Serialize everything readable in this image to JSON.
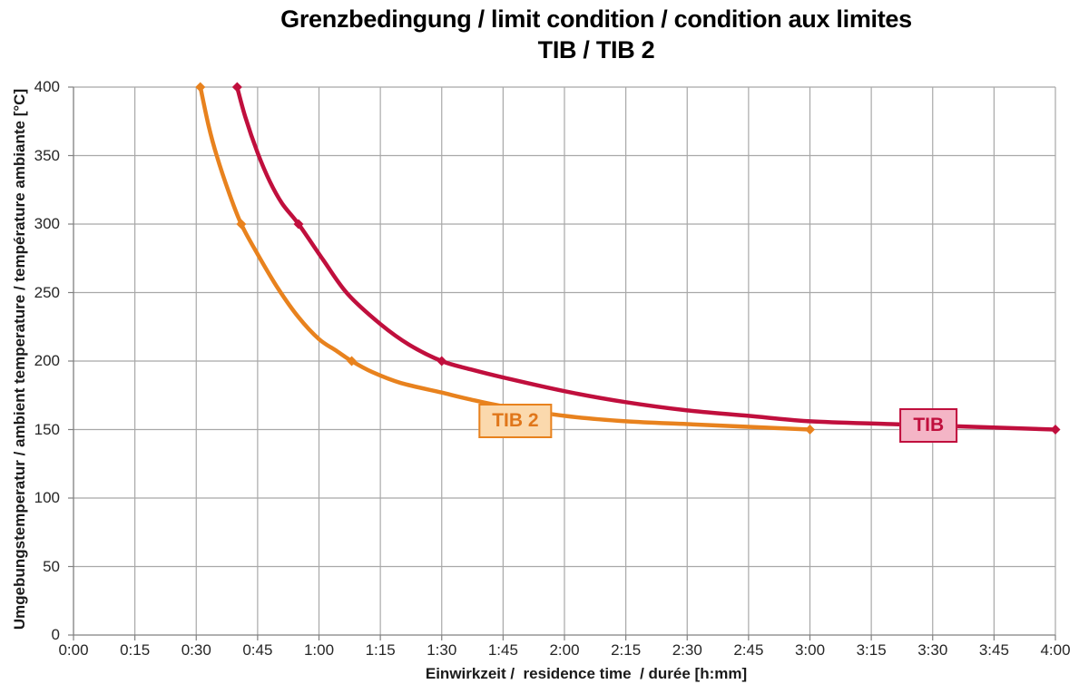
{
  "title": {
    "line1": "Grenzbedingung / limit condition / condition aux limites",
    "line2": "TIB / TIB 2"
  },
  "chart_data": {
    "type": "line",
    "title": "Grenzbedingung / limit condition / condition aux limites",
    "subtitle": "TIB / TIB 2",
    "xlabel": "Einwirkzeit /  residence time  / durée [h:mm]",
    "ylabel": "Umgebungstemperatur / ambient temperature / température ambiante [°C]",
    "x_unit": "h:mm",
    "xlim_minutes": [
      0,
      240
    ],
    "ylim": [
      0,
      400
    ],
    "grid": true,
    "legend_position": "inline-boxes",
    "x_ticks": [
      "0:00",
      "0:15",
      "0:30",
      "0:45",
      "1:00",
      "1:15",
      "1:30",
      "1:45",
      "2:00",
      "2:15",
      "2:30",
      "2:45",
      "3:00",
      "3:15",
      "3:30",
      "3:45",
      "4:00"
    ],
    "x_tick_minutes": [
      0,
      15,
      30,
      45,
      60,
      75,
      90,
      105,
      120,
      135,
      150,
      165,
      180,
      195,
      210,
      225,
      240
    ],
    "y_ticks": [
      0,
      50,
      100,
      150,
      200,
      250,
      300,
      350,
      400
    ],
    "colors": {
      "grid": "#A8A8A8",
      "axis": "#808080",
      "tick_text": "#262626",
      "title_text": "#000000"
    },
    "series": [
      {
        "name": "TIB 2",
        "color": "#E8821E",
        "points": [
          [
            31,
            400
          ],
          [
            33,
            372
          ],
          [
            35,
            350
          ],
          [
            38,
            323
          ],
          [
            41,
            300
          ],
          [
            45,
            278
          ],
          [
            50,
            253
          ],
          [
            55,
            232
          ],
          [
            60,
            216
          ],
          [
            64,
            208
          ],
          [
            68,
            200
          ],
          [
            73,
            192
          ],
          [
            80,
            184
          ],
          [
            90,
            177
          ],
          [
            97,
            172
          ],
          [
            105,
            167
          ],
          [
            120,
            160
          ],
          [
            135,
            156
          ],
          [
            150,
            154
          ],
          [
            165,
            152
          ],
          [
            180,
            150
          ]
        ],
        "markers": [
          [
            31,
            400
          ],
          [
            41,
            300
          ],
          [
            68,
            200
          ],
          [
            180,
            150
          ]
        ]
      },
      {
        "name": "TIB",
        "color": "#C00F3D",
        "points": [
          [
            40,
            400
          ],
          [
            42,
            378
          ],
          [
            45,
            352
          ],
          [
            48,
            331
          ],
          [
            51,
            315
          ],
          [
            55,
            300
          ],
          [
            61,
            274
          ],
          [
            67,
            249
          ],
          [
            75,
            227
          ],
          [
            82,
            212
          ],
          [
            90,
            200
          ],
          [
            97,
            194
          ],
          [
            105,
            188
          ],
          [
            120,
            178
          ],
          [
            135,
            170
          ],
          [
            150,
            164
          ],
          [
            165,
            160
          ],
          [
            180,
            156
          ],
          [
            200,
            154
          ],
          [
            220,
            152
          ],
          [
            240,
            150
          ]
        ],
        "markers": [
          [
            40,
            400
          ],
          [
            55,
            300
          ],
          [
            90,
            200
          ],
          [
            240,
            150
          ]
        ]
      }
    ],
    "annotations": [
      {
        "text": "TIB 2",
        "t_min": 108,
        "temp": 156,
        "fill": "#FBD9AD",
        "border": "#E8821E",
        "text_color": "#E0761A"
      },
      {
        "text": "TIB",
        "t_min": 209,
        "temp": 153,
        "fill": "#F4B5C6",
        "border": "#C00F3D",
        "text_color": "#C00F3D"
      }
    ]
  }
}
